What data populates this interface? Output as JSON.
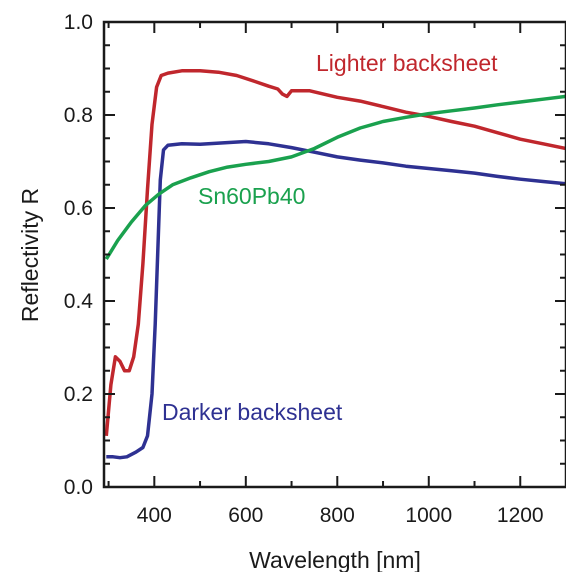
{
  "chart_data": {
    "type": "line",
    "title": "",
    "xlabel": "Wavelength [nm]",
    "ylabel": "Reflectivity R",
    "xlim": [
      290,
      1300
    ],
    "ylim": [
      0.0,
      1.0
    ],
    "x_ticks": [
      400,
      600,
      800,
      1000,
      1200
    ],
    "y_ticks": [
      0.0,
      0.2,
      0.4,
      0.6,
      0.8,
      1.0
    ],
    "x_tick_labels": [
      "400",
      "600",
      "800",
      "1000",
      "1200"
    ],
    "y_tick_labels": [
      "0.0",
      "0.2",
      "0.4",
      "0.6",
      "0.8",
      "1.0"
    ],
    "grid": false,
    "legend": "inline labels next to curves",
    "series": [
      {
        "name": "Lighter backsheet",
        "color": "#c0272d",
        "points": [
          [
            295,
            0.11
          ],
          [
            305,
            0.22
          ],
          [
            315,
            0.28
          ],
          [
            325,
            0.27
          ],
          [
            335,
            0.25
          ],
          [
            345,
            0.25
          ],
          [
            355,
            0.28
          ],
          [
            365,
            0.35
          ],
          [
            375,
            0.48
          ],
          [
            385,
            0.64
          ],
          [
            395,
            0.78
          ],
          [
            405,
            0.86
          ],
          [
            415,
            0.885
          ],
          [
            430,
            0.89
          ],
          [
            460,
            0.895
          ],
          [
            500,
            0.895
          ],
          [
            540,
            0.892
          ],
          [
            580,
            0.885
          ],
          [
            620,
            0.872
          ],
          [
            650,
            0.862
          ],
          [
            670,
            0.856
          ],
          [
            680,
            0.845
          ],
          [
            690,
            0.84
          ],
          [
            700,
            0.852
          ],
          [
            740,
            0.852
          ],
          [
            800,
            0.838
          ],
          [
            850,
            0.83
          ],
          [
            900,
            0.818
          ],
          [
            950,
            0.806
          ],
          [
            1000,
            0.797
          ],
          [
            1050,
            0.786
          ],
          [
            1100,
            0.776
          ],
          [
            1150,
            0.762
          ],
          [
            1200,
            0.748
          ],
          [
            1250,
            0.738
          ],
          [
            1300,
            0.728
          ]
        ]
      },
      {
        "name": "Darker backsheet",
        "color": "#2e3192",
        "points": [
          [
            295,
            0.065
          ],
          [
            310,
            0.065
          ],
          [
            325,
            0.063
          ],
          [
            340,
            0.065
          ],
          [
            360,
            0.075
          ],
          [
            375,
            0.085
          ],
          [
            385,
            0.11
          ],
          [
            395,
            0.2
          ],
          [
            402,
            0.35
          ],
          [
            408,
            0.52
          ],
          [
            413,
            0.66
          ],
          [
            420,
            0.725
          ],
          [
            430,
            0.735
          ],
          [
            460,
            0.738
          ],
          [
            500,
            0.737
          ],
          [
            550,
            0.74
          ],
          [
            600,
            0.743
          ],
          [
            650,
            0.738
          ],
          [
            700,
            0.73
          ],
          [
            750,
            0.72
          ],
          [
            800,
            0.71
          ],
          [
            850,
            0.703
          ],
          [
            900,
            0.697
          ],
          [
            950,
            0.69
          ],
          [
            1000,
            0.685
          ],
          [
            1050,
            0.68
          ],
          [
            1100,
            0.675
          ],
          [
            1150,
            0.668
          ],
          [
            1200,
            0.662
          ],
          [
            1250,
            0.657
          ],
          [
            1300,
            0.652
          ]
        ]
      },
      {
        "name": "Sn60Pb40",
        "color": "#1aa14e",
        "points": [
          [
            295,
            0.49
          ],
          [
            320,
            0.53
          ],
          [
            350,
            0.57
          ],
          [
            380,
            0.605
          ],
          [
            410,
            0.63
          ],
          [
            440,
            0.65
          ],
          [
            480,
            0.665
          ],
          [
            520,
            0.678
          ],
          [
            560,
            0.688
          ],
          [
            600,
            0.694
          ],
          [
            650,
            0.7
          ],
          [
            700,
            0.71
          ],
          [
            750,
            0.728
          ],
          [
            800,
            0.752
          ],
          [
            850,
            0.772
          ],
          [
            900,
            0.786
          ],
          [
            950,
            0.795
          ],
          [
            1000,
            0.803
          ],
          [
            1050,
            0.809
          ],
          [
            1100,
            0.815
          ],
          [
            1150,
            0.822
          ],
          [
            1200,
            0.828
          ],
          [
            1250,
            0.834
          ],
          [
            1300,
            0.84
          ]
        ]
      }
    ]
  }
}
